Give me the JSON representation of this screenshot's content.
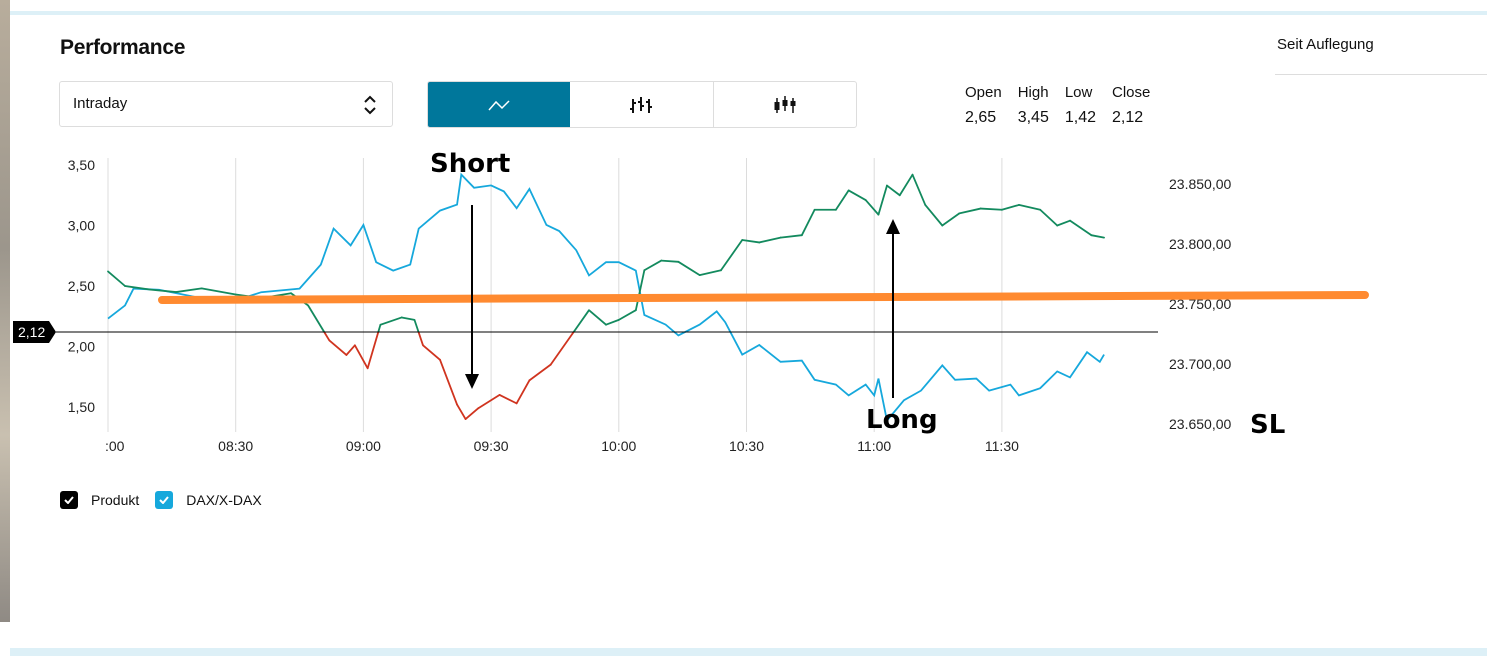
{
  "title": "Performance",
  "period_select": {
    "value": "Intraday"
  },
  "chart_types": [
    {
      "name": "line",
      "active": true
    },
    {
      "name": "ohlc",
      "active": false
    },
    {
      "name": "candlestick",
      "active": false
    }
  ],
  "ohlc": [
    {
      "label": "Open",
      "value": "2,65"
    },
    {
      "label": "High",
      "value": "3,45"
    },
    {
      "label": "Low",
      "value": "1,42"
    },
    {
      "label": "Close",
      "value": "2,12"
    }
  ],
  "side_tab": "Seit Auflegung",
  "legend": [
    {
      "label": "Produkt",
      "color": "#000000"
    },
    {
      "label": "DAX/X-DAX",
      "color": "#16a8dc"
    }
  ],
  "colors": {
    "accent": "#00779b",
    "up": "#138a5e",
    "down": "#d0341f",
    "index": "#16a8dc",
    "annotation_line": "#ff8a30"
  },
  "chart_data": {
    "type": "line",
    "x_unit": "minutes since 08:00",
    "xlim": [
      0,
      246
    ],
    "x_ticks": [
      {
        "m": 0,
        "label": ":00"
      },
      {
        "m": 30,
        "label": "08:30"
      },
      {
        "m": 60,
        "label": "09:00"
      },
      {
        "m": 90,
        "label": "09:30"
      },
      {
        "m": 120,
        "label": "10:00"
      },
      {
        "m": 150,
        "label": "10:30"
      },
      {
        "m": 180,
        "label": "11:00"
      },
      {
        "m": 210,
        "label": "11:30"
      }
    ],
    "y_left": {
      "lim": [
        1.33,
        3.58
      ],
      "ticks": [
        {
          "v": 3.5,
          "label": "3,50"
        },
        {
          "v": 3.0,
          "label": "3,00"
        },
        {
          "v": 2.5,
          "label": "2,50"
        },
        {
          "v": 2.0,
          "label": "2,00"
        },
        {
          "v": 1.5,
          "label": "1,50"
        }
      ]
    },
    "y_right": {
      "lim": [
        23645,
        23865
      ],
      "ticks": [
        {
          "v": 23850,
          "label": "23.850,00"
        },
        {
          "v": 23800,
          "label": "23.800,00"
        },
        {
          "v": 23750,
          "label": "23.750,00"
        },
        {
          "v": 23700,
          "label": "23.700,00"
        },
        {
          "v": 23650,
          "label": "23.650,00"
        }
      ]
    },
    "close_marker": {
      "value": 2.12,
      "label": "2,12"
    },
    "series": [
      {
        "name": "Produkt",
        "axis": "left",
        "color_above": "#138a5e",
        "color_below": "#d0341f",
        "threshold": 2.12,
        "x": [
          0,
          4,
          10,
          16,
          22,
          30,
          36,
          43,
          47,
          52,
          56,
          58,
          61,
          64,
          69,
          72,
          74,
          78,
          82,
          84,
          87,
          92,
          96,
          99,
          104,
          109,
          113,
          117,
          120,
          124,
          126,
          130,
          134,
          139,
          144,
          149,
          153,
          158,
          163,
          166,
          171,
          174,
          178,
          181,
          183,
          186,
          189,
          192,
          196,
          200,
          205,
          210,
          214,
          219,
          223,
          226,
          231,
          234
        ],
        "y": [
          2.62,
          2.5,
          2.47,
          2.45,
          2.48,
          2.43,
          2.4,
          2.44,
          2.34,
          2.05,
          1.93,
          2.01,
          1.82,
          2.18,
          2.24,
          2.22,
          2.01,
          1.89,
          1.52,
          1.4,
          1.49,
          1.6,
          1.53,
          1.72,
          1.85,
          2.1,
          2.3,
          2.18,
          2.22,
          2.3,
          2.63,
          2.71,
          2.7,
          2.59,
          2.63,
          2.88,
          2.86,
          2.9,
          2.92,
          3.13,
          3.13,
          3.29,
          3.21,
          3.09,
          3.33,
          3.25,
          3.42,
          3.17,
          3.0,
          3.1,
          3.14,
          3.13,
          3.17,
          3.13,
          3.0,
          3.04,
          2.92,
          2.9
        ]
      },
      {
        "name": "DAX/X-DAX",
        "axis": "right",
        "color": "#16a8dc",
        "x": [
          0,
          4,
          6,
          12,
          22,
          30,
          36,
          45,
          50,
          53,
          57,
          60,
          63,
          67,
          71,
          73,
          78,
          82,
          83,
          86,
          90,
          93,
          96,
          99,
          103,
          106,
          110,
          113,
          117,
          120,
          124,
          126,
          131,
          134,
          139,
          143,
          145,
          149,
          153,
          158,
          163,
          166,
          171,
          174,
          178,
          180,
          181,
          183,
          187,
          191,
          196,
          199,
          204,
          207,
          212,
          214,
          219,
          223,
          226,
          230,
          233,
          234
        ],
        "y": [
          23737,
          23748,
          23762,
          23761,
          23754,
          23752,
          23759,
          23762,
          23782,
          23812,
          23798,
          23815,
          23784,
          23777,
          23782,
          23812,
          23827,
          23832,
          23857,
          23846,
          23848,
          23843,
          23829,
          23845,
          23815,
          23810,
          23794,
          23773,
          23784,
          23784,
          23777,
          23740,
          23732,
          23723,
          23732,
          23743,
          23734,
          23707,
          23715,
          23701,
          23702,
          23686,
          23682,
          23673,
          23682,
          23673,
          23687,
          23652,
          23669,
          23677,
          23698,
          23686,
          23687,
          23677,
          23682,
          23673,
          23679,
          23693,
          23688,
          23709,
          23701,
          23707
        ]
      }
    ],
    "annotations": {
      "short": "Short",
      "long": "Long",
      "stop_loss": "SL"
    }
  }
}
